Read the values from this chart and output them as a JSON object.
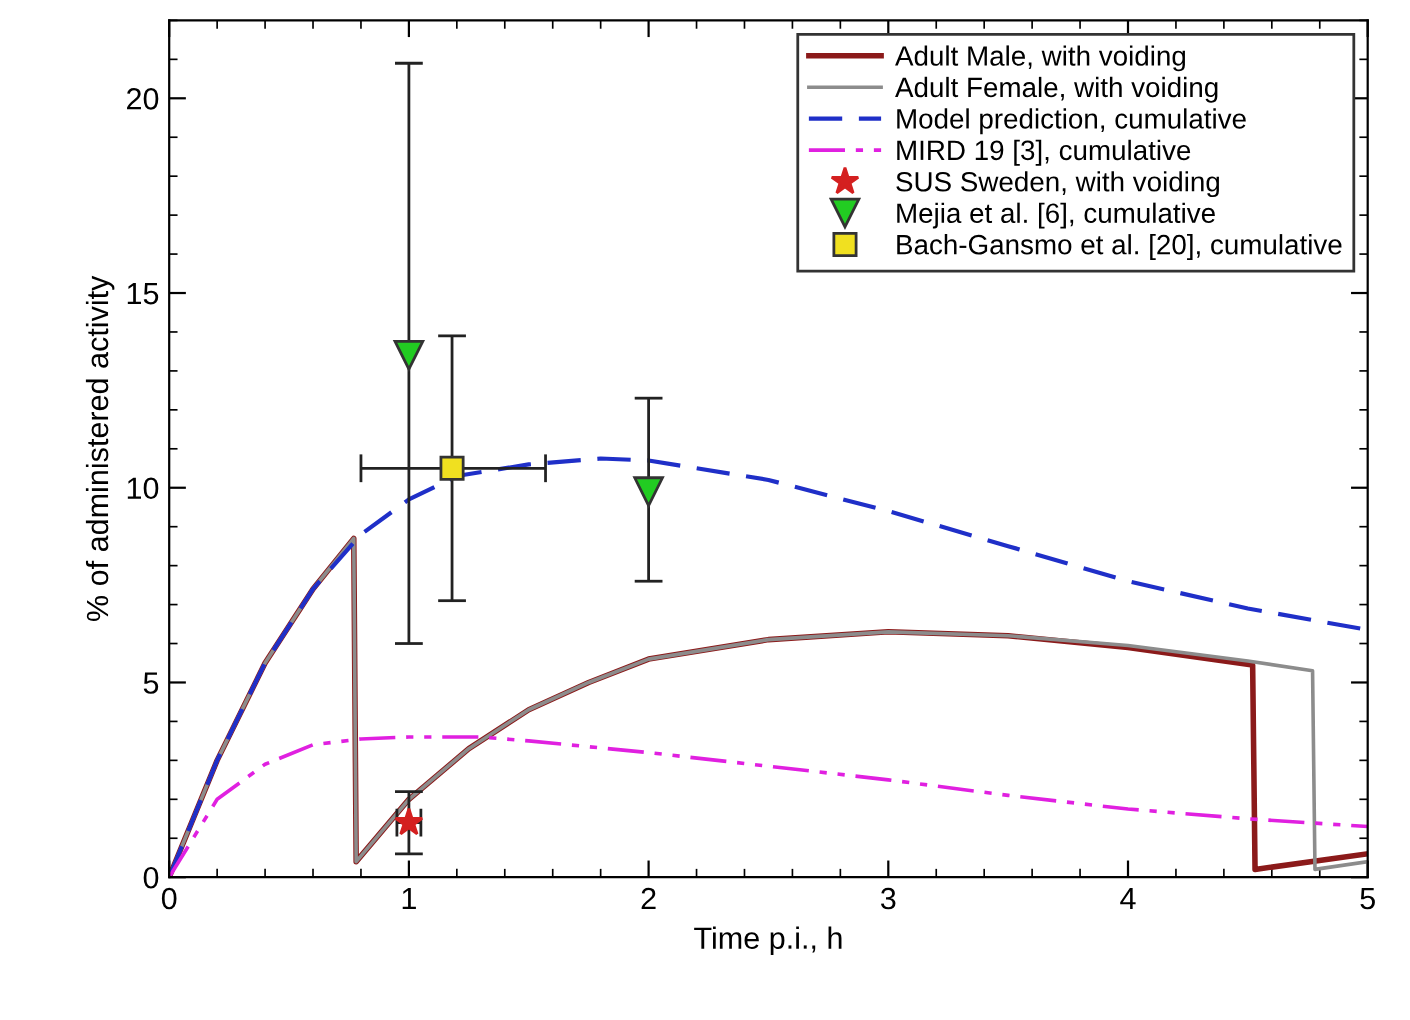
{
  "chart_data": {
    "type": "line",
    "xlabel": "Time p.i., h",
    "ylabel": "% of administered activity",
    "xlim": [
      0,
      5
    ],
    "ylim": [
      0,
      22
    ],
    "xticks": [
      0,
      1,
      2,
      3,
      4,
      5
    ],
    "yticks": [
      0,
      5,
      10,
      15,
      20
    ],
    "grid": false,
    "legend": "top right",
    "series": [
      {
        "name": "Adult Male, with voiding",
        "color": "#8b1a1a",
        "line_style": "solid",
        "marker": "none",
        "x": [
          0,
          0.2,
          0.4,
          0.6,
          0.77,
          0.78,
          1,
          1.25,
          1.5,
          1.75,
          2,
          2.5,
          3,
          3.5,
          4,
          4.52,
          4.53,
          5
        ],
        "values": [
          0,
          3,
          5.5,
          7.4,
          8.7,
          0.4,
          2.0,
          3.3,
          4.3,
          5.0,
          5.6,
          6.1,
          6.3,
          6.2,
          5.9,
          5.45,
          0.2,
          0.6
        ]
      },
      {
        "name": "Adult Female, with voiding",
        "color": "#8c8c8c",
        "line_style": "solid",
        "marker": "none",
        "x": [
          0,
          0.2,
          0.4,
          0.6,
          0.77,
          0.78,
          1,
          1.25,
          1.5,
          1.75,
          2,
          2.5,
          3,
          3.5,
          4,
          4.5,
          4.77,
          4.78,
          5
        ],
        "values": [
          0,
          3,
          5.5,
          7.4,
          8.7,
          0.4,
          2.0,
          3.3,
          4.3,
          5.0,
          5.6,
          6.1,
          6.3,
          6.2,
          5.95,
          5.55,
          5.3,
          0.2,
          0.4
        ]
      },
      {
        "name": "Model prediction, cumulative",
        "color": "#1f2fc8",
        "line_style": "dashed",
        "marker": "none",
        "x": [
          0,
          0.2,
          0.4,
          0.6,
          0.8,
          1,
          1.2,
          1.5,
          1.8,
          2,
          2.5,
          3,
          3.5,
          4,
          4.5,
          5
        ],
        "values": [
          0,
          3,
          5.5,
          7.4,
          8.8,
          9.7,
          10.3,
          10.6,
          10.75,
          10.7,
          10.2,
          9.4,
          8.5,
          7.6,
          6.9,
          6.35
        ]
      },
      {
        "name": "MIRD 19 [3], cumulative",
        "color": "#e020e0",
        "line_style": "dotted",
        "marker": "none",
        "x": [
          0,
          0.2,
          0.4,
          0.6,
          0.8,
          1,
          1.3,
          1.5,
          2,
          2.5,
          3,
          3.5,
          4,
          4.5,
          5
        ],
        "values": [
          0,
          2.0,
          2.9,
          3.4,
          3.55,
          3.6,
          3.6,
          3.5,
          3.2,
          2.85,
          2.5,
          2.1,
          1.75,
          1.5,
          1.3
        ]
      },
      {
        "name": "SUS Sweden, with voiding",
        "type": "scatter",
        "color": "#d42020",
        "marker": "star",
        "x": [
          1
        ],
        "values": [
          1.4
        ],
        "errors": [
          [
            0.6,
            2.2
          ]
        ],
        "xerrors": [
          [
            0.95,
            1.05
          ]
        ]
      },
      {
        "name": "Mejia et al. [6], cumulative",
        "type": "scatter",
        "color": "#22cc22",
        "marker": "triangle",
        "x": [
          1,
          2
        ],
        "values": [
          13.4,
          9.9
        ],
        "errors": [
          [
            6.0,
            20.9
          ],
          [
            7.6,
            12.3
          ]
        ]
      },
      {
        "name": "Bach-Gansmo et al. [20], cumulative",
        "type": "scatter",
        "color": "#f0e020",
        "marker": "square",
        "x": [
          1.18
        ],
        "values": [
          10.5
        ],
        "errors": [
          [
            7.1,
            13.9
          ]
        ],
        "xerrors": [
          [
            0.8,
            1.57
          ]
        ]
      }
    ]
  }
}
